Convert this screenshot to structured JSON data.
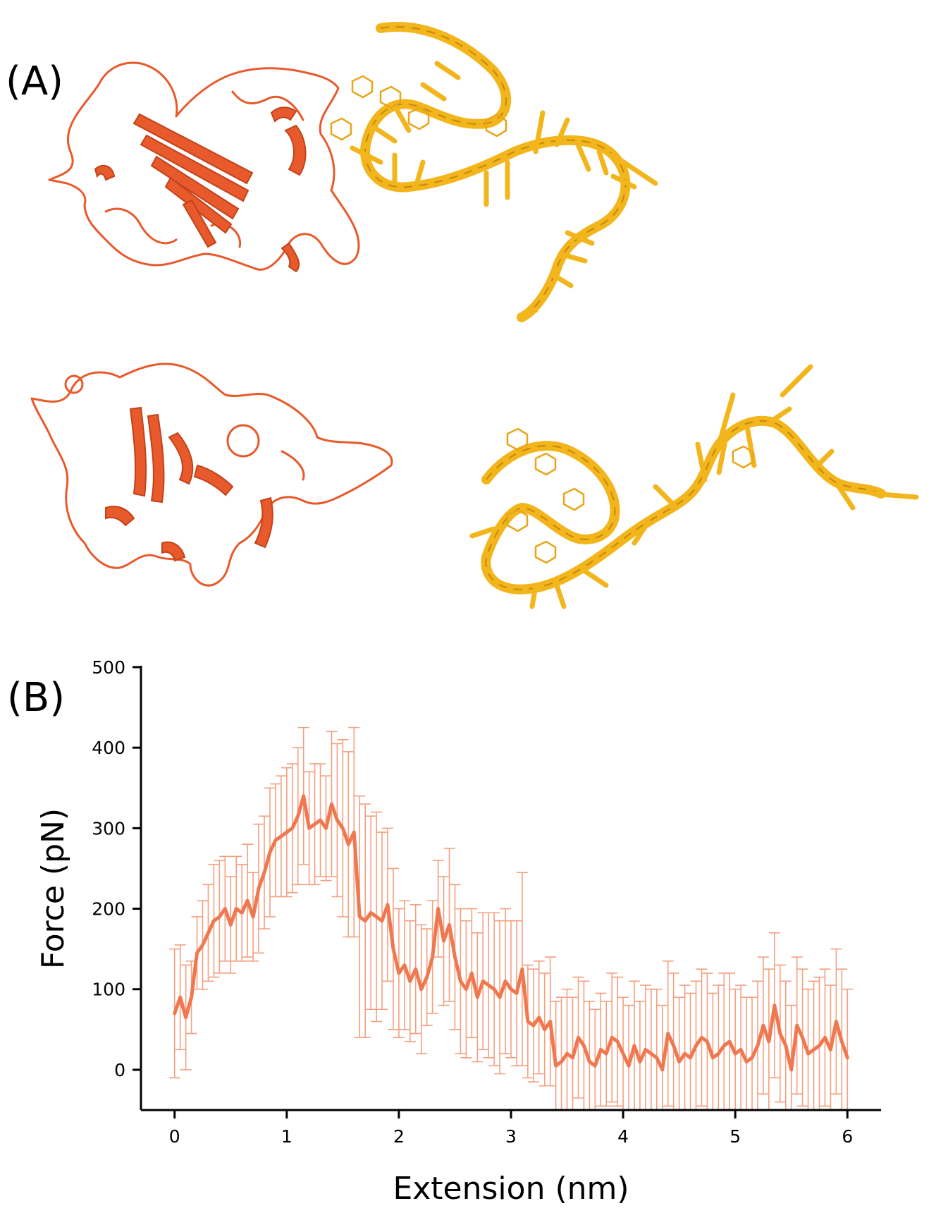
{
  "panels": {
    "a_label": "(A)",
    "b_label": "(B)"
  },
  "colors": {
    "protein": "#e85a2c",
    "protein_dark": "#c2421a",
    "rna": "#f2b51c",
    "rna_dark": "#c8870a",
    "curve": "#f07850",
    "errorbar": "#f4a080"
  },
  "molecules": {
    "complex_bound": [
      "protein-ribbon",
      "rna-aptamer-ribbon"
    ],
    "complex_separated": [
      "protein-ribbon",
      "rna-aptamer-ribbon"
    ]
  },
  "chart_data": {
    "type": "line",
    "xlabel": "Extension (nm)",
    "ylabel": "Force (pN)",
    "xlim": [
      -0.3,
      6.3
    ],
    "ylim": [
      -50,
      500
    ],
    "xticks": [
      0,
      1,
      2,
      3,
      4,
      5,
      6
    ],
    "yticks": [
      0,
      100,
      200,
      300,
      400,
      500
    ],
    "grid": false,
    "error_bars": true,
    "series": [
      {
        "x": [
          0.0,
          0.05,
          0.1,
          0.15,
          0.2,
          0.25,
          0.3,
          0.35,
          0.4,
          0.45,
          0.5,
          0.55,
          0.6,
          0.65,
          0.7,
          0.75,
          0.8,
          0.85,
          0.9,
          0.95,
          1.0,
          1.05,
          1.1,
          1.15,
          1.2,
          1.25,
          1.3,
          1.35,
          1.4,
          1.45,
          1.5,
          1.55,
          1.6,
          1.65,
          1.7,
          1.75,
          1.8,
          1.85,
          1.9,
          1.95,
          2.0,
          2.05,
          2.1,
          2.15,
          2.2,
          2.25,
          2.3,
          2.35,
          2.4,
          2.45,
          2.5,
          2.55,
          2.6,
          2.65,
          2.7,
          2.75,
          2.8,
          2.85,
          2.9,
          2.95,
          3.0,
          3.05,
          3.1,
          3.15,
          3.2,
          3.25,
          3.3,
          3.35,
          3.4,
          3.45,
          3.5,
          3.55,
          3.6,
          3.65,
          3.7,
          3.75,
          3.8,
          3.85,
          3.9,
          3.95,
          4.0,
          4.05,
          4.1,
          4.15,
          4.2,
          4.25,
          4.3,
          4.35,
          4.4,
          4.45,
          4.5,
          4.55,
          4.6,
          4.65,
          4.7,
          4.75,
          4.8,
          4.85,
          4.9,
          4.95,
          5.0,
          5.05,
          5.1,
          5.15,
          5.2,
          5.25,
          5.3,
          5.35,
          5.4,
          5.45,
          5.5,
          5.55,
          5.6,
          5.65,
          5.7,
          5.75,
          5.8,
          5.85,
          5.9,
          5.95,
          6.0
        ],
        "y": [
          70,
          90,
          65,
          90,
          145,
          155,
          170,
          185,
          190,
          200,
          180,
          200,
          195,
          210,
          190,
          225,
          245,
          270,
          285,
          290,
          295,
          300,
          315,
          340,
          300,
          305,
          310,
          300,
          330,
          310,
          300,
          280,
          295,
          190,
          185,
          195,
          190,
          185,
          205,
          150,
          120,
          130,
          110,
          125,
          100,
          115,
          140,
          200,
          160,
          180,
          140,
          110,
          100,
          120,
          90,
          110,
          105,
          100,
          90,
          110,
          100,
          95,
          125,
          60,
          55,
          65,
          50,
          60,
          5,
          10,
          20,
          15,
          40,
          30,
          10,
          5,
          25,
          20,
          40,
          35,
          20,
          5,
          30,
          10,
          25,
          20,
          15,
          0,
          45,
          30,
          10,
          20,
          15,
          30,
          40,
          35,
          15,
          20,
          30,
          35,
          20,
          25,
          10,
          15,
          30,
          55,
          35,
          80,
          45,
          30,
          0,
          55,
          40,
          20,
          25,
          30,
          40,
          25,
          60,
          35,
          15
        ],
        "err": [
          80,
          65,
          65,
          45,
          45,
          55,
          60,
          70,
          70,
          65,
          60,
          65,
          60,
          70,
          55,
          80,
          70,
          80,
          70,
          75,
          80,
          80,
          85,
          85,
          70,
          75,
          70,
          65,
          90,
          95,
          110,
          115,
          130,
          150,
          145,
          120,
          130,
          110,
          95,
          100,
          80,
          80,
          75,
          80,
          80,
          60,
          70,
          60,
          80,
          95,
          90,
          90,
          85,
          80,
          80,
          85,
          90,
          95,
          95,
          90,
          85,
          90,
          120,
          70,
          70,
          70,
          70,
          80,
          80,
          80,
          80,
          75,
          75,
          80,
          75,
          70,
          70,
          65,
          80,
          80,
          70,
          75,
          80,
          75,
          80,
          80,
          85,
          80,
          90,
          90,
          80,
          85,
          80,
          80,
          85,
          85,
          80,
          85,
          90,
          85,
          80,
          80,
          80,
          75,
          80,
          85,
          90,
          90,
          85,
          80,
          80,
          85,
          85,
          80,
          85,
          85,
          85,
          80,
          90,
          90,
          85
        ]
      }
    ]
  }
}
